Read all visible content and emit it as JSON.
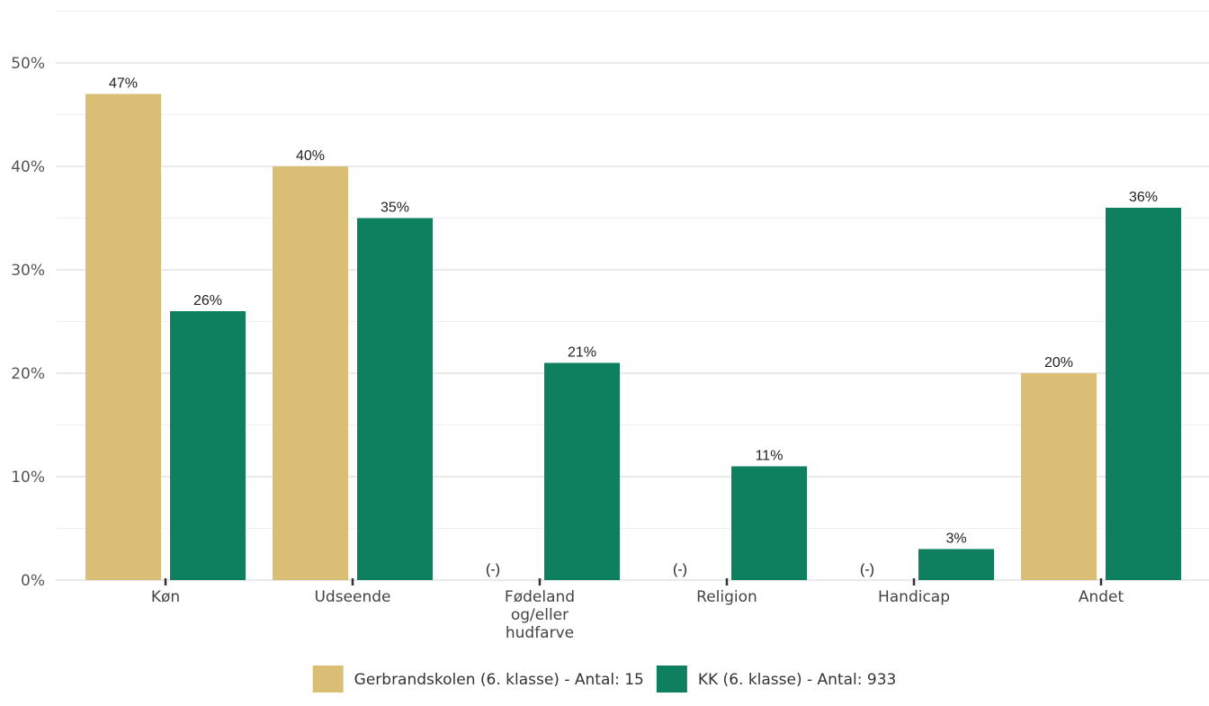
{
  "chart_data": {
    "type": "bar",
    "title": "",
    "xlabel": "",
    "ylabel": "",
    "ylim": [
      0,
      50
    ],
    "yticks": [
      "0%",
      "10%",
      "20%",
      "30%",
      "40%",
      "50%"
    ],
    "grid": true,
    "legend_position": "bottom",
    "categories": [
      {
        "label": "Køn",
        "lines": [
          "Køn"
        ]
      },
      {
        "label": "Udseende",
        "lines": [
          "Udseende"
        ]
      },
      {
        "label": "Fødeland og/eller hudfarve",
        "lines": [
          "Fødeland",
          "og/eller",
          "hudfarve"
        ]
      },
      {
        "label": "Religion",
        "lines": [
          "Religion"
        ]
      },
      {
        "label": "Handicap",
        "lines": [
          "Handicap"
        ]
      },
      {
        "label": "Andet",
        "lines": [
          "Andet"
        ]
      }
    ],
    "series": [
      {
        "name": "Gerbrandskolen (6. klasse) - Antal: 15",
        "color": "#dbbe76",
        "values": [
          47,
          40,
          null,
          null,
          null,
          20
        ],
        "labels": [
          "47%",
          "40%",
          "(-)",
          "(-)",
          "(-)",
          "20%"
        ]
      },
      {
        "name": "KK (6. klasse) - Antal: 933",
        "color": "#0e7f5f",
        "values": [
          26,
          35,
          21,
          11,
          3,
          36
        ],
        "labels": [
          "26%",
          "35%",
          "21%",
          "11%",
          "3%",
          "36%"
        ]
      }
    ]
  }
}
